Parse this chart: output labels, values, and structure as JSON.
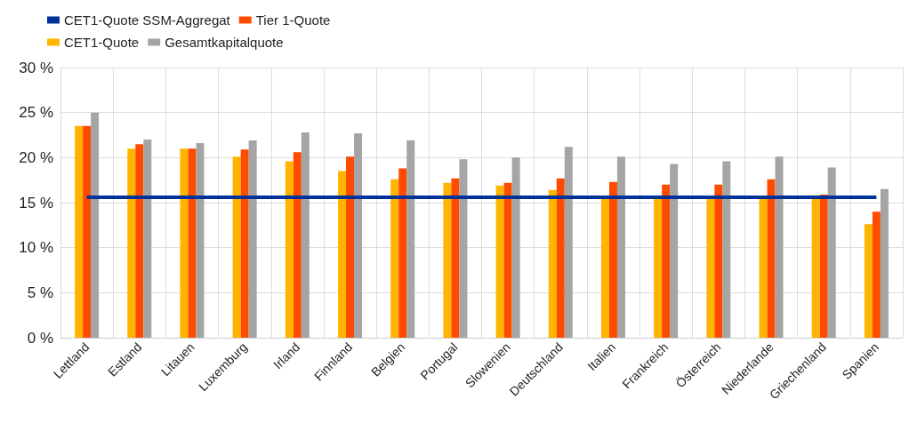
{
  "chart_data": {
    "type": "bar",
    "categories": [
      "Lettland",
      "Estland",
      "Litauen",
      "Luxemburg",
      "Irland",
      "Finnland",
      "Belgien",
      "Portugal",
      "Slowenien",
      "Deutschland",
      "Italien",
      "Frankreich",
      "Österreich",
      "Niederlande",
      "Griechenland",
      "Spanien"
    ],
    "series": [
      {
        "name": "CET1-Quote",
        "color": "#ffb400",
        "values": [
          23.5,
          21.0,
          21.0,
          20.1,
          19.6,
          18.5,
          17.6,
          17.2,
          16.9,
          16.4,
          15.5,
          15.5,
          15.5,
          15.5,
          15.5,
          12.6
        ]
      },
      {
        "name": "Tier 1-Quote",
        "color": "#ff4b00",
        "values": [
          23.5,
          21.5,
          21.0,
          20.9,
          20.6,
          20.1,
          18.8,
          17.7,
          17.2,
          17.7,
          17.3,
          17.0,
          17.0,
          17.6,
          15.9,
          14.0
        ]
      },
      {
        "name": "Gesamtkapitalquote",
        "color": "#a5a5a5",
        "values": [
          25.0,
          22.0,
          21.6,
          21.9,
          22.8,
          22.7,
          21.9,
          19.8,
          20.0,
          21.2,
          20.1,
          19.3,
          19.6,
          20.1,
          18.9,
          16.5
        ]
      },
      {
        "name": "CET1-Quote SSM-Aggregat",
        "type": "line",
        "color": "#003299",
        "marker": "none",
        "values": [
          15.6,
          15.6,
          15.6,
          15.6,
          15.6,
          15.6,
          15.6,
          15.6,
          15.6,
          15.6,
          15.6,
          15.6,
          15.6,
          15.6,
          15.6,
          15.6
        ]
      }
    ],
    "ylim": [
      0,
      30
    ],
    "yticks": [
      {
        "value": 0,
        "label": "0 %"
      },
      {
        "value": 5,
        "label": "5 %"
      },
      {
        "value": 10,
        "label": "10 %"
      },
      {
        "value": 15,
        "label": "15 %"
      },
      {
        "value": 20,
        "label": "20 %"
      },
      {
        "value": 25,
        "label": "25 %"
      },
      {
        "value": 30,
        "label": "30 %"
      }
    ],
    "grid": true,
    "legend": "top left"
  }
}
